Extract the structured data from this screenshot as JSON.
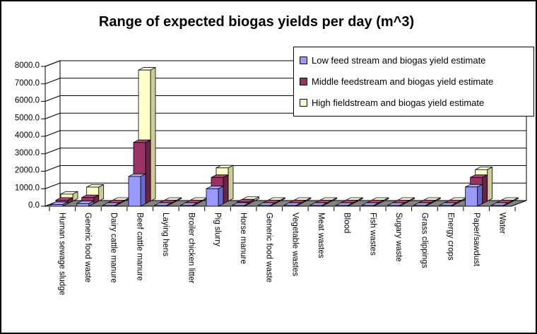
{
  "window": {
    "background_color": "#FFFFFF",
    "border_color": "#000000"
  },
  "chart_data": {
    "type": "bar",
    "style": "3d-column",
    "title": "Range of expected biogas yields per day (m^3)",
    "categories": [
      "Human sewage sludge",
      "Generic food waste",
      "Dairy cattle manure",
      "Beef cattle manure",
      "Laying hens",
      "Broiler chicken litter",
      "Pig slurry",
      "Horse manure",
      "Generic food waste",
      "Vegetable wastes",
      "Meat wastes",
      "Blood",
      "Fish wastes",
      "Sugary waste",
      "Grass clippings",
      "Energy crops",
      "Paper/sawdust",
      "Water"
    ],
    "series": [
      {
        "name": "Low feed stream and biogas yield estimate",
        "fill": "#9999FF",
        "top": "#ADADF9",
        "side": "#6A6AC8",
        "values": [
          100,
          150,
          0,
          1700,
          0,
          0,
          1000,
          0,
          0,
          0,
          0,
          0,
          0,
          0,
          0,
          0,
          1100,
          0
        ]
      },
      {
        "name": "Middle feedstream and biogas yield estimate",
        "fill": "#993366",
        "top": "#AD4A7B",
        "side": "#6B2347",
        "values": [
          200,
          350,
          0,
          3500,
          0,
          0,
          1500,
          100,
          0,
          0,
          0,
          0,
          0,
          0,
          0,
          0,
          1500,
          0
        ]
      },
      {
        "name": "High fieldstream and biogas yield estimate",
        "fill": "#FFFFCC",
        "top": "#FFFFE2",
        "side": "#CCCC99",
        "values": [
          400,
          800,
          0,
          7500,
          0,
          0,
          1900,
          100,
          0,
          0,
          0,
          0,
          0,
          0,
          0,
          0,
          1800,
          0
        ]
      }
    ],
    "y_axis": {
      "min": 0,
      "max": 8000,
      "step": 1000,
      "tick_labels": [
        "0.0",
        "1000.0",
        "2000.0",
        "3000.0",
        "4000.0",
        "5000.0",
        "6000.0",
        "7000.0",
        "8000.0"
      ]
    },
    "legend_position": "top-right",
    "grid": true,
    "colors": {
      "floor": "#848284",
      "wall": "#FFFFFF",
      "gridline": "#000000",
      "axis_text": "#000000"
    }
  }
}
